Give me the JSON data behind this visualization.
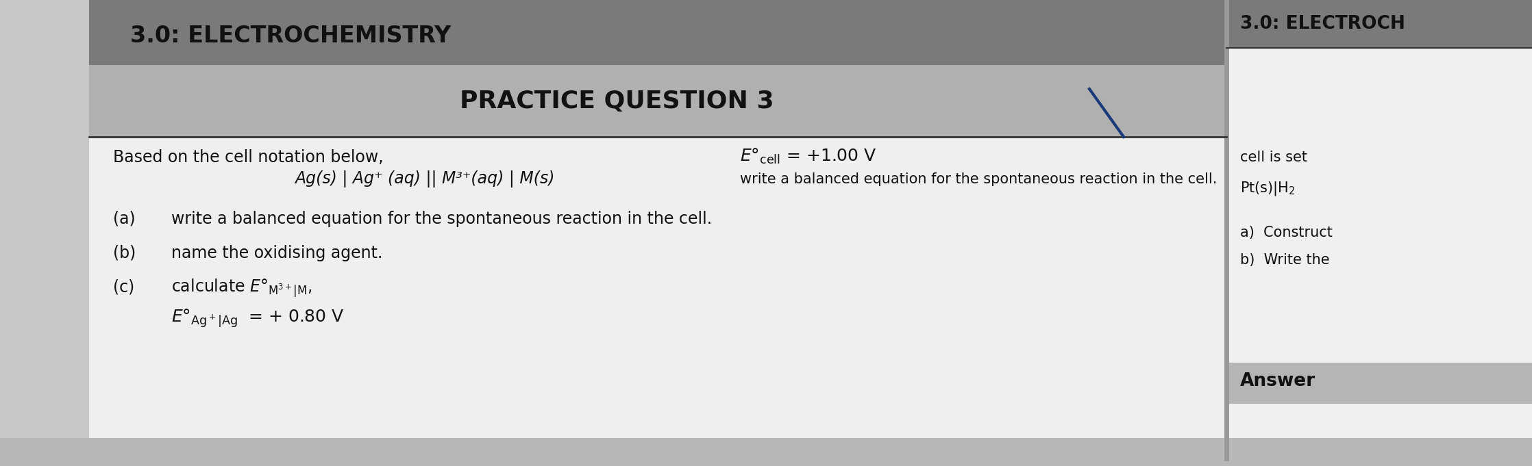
{
  "title_left": "3.0: ELECTROCHEMISTRY",
  "title_right": "3.0: ELECTROCH",
  "practice_title": "PRACTICE QUESTION 3",
  "intro_line1": "Based on the cell notation below,",
  "cell_notation": "Ag(s) | Ag⁺ (aq) || M³⁺(aq) | M(s)",
  "ecell_label": "E°ₑₑₗₗ = +1.00 V",
  "spontaneous": "write a balanced equation for the spontaneous reaction in the cell.",
  "cell_is_set": "cell is set",
  "pt_text": "Pt(s)|H₂",
  "construct_text": "a)  Construct",
  "write_text": "b)  Write the",
  "answer_text": "Answer",
  "qa": "(a)",
  "qb": "(b)",
  "qc": "(c)",
  "write_a": "write a balanced equation for the spontaneous reaction in the cell.",
  "write_b": "name the oxidising agent.",
  "write_c": "calculate E°M³⁺|M ,",
  "eo_ag_val": " = + 0.80 V",
  "bg_outer": "#c8c8c8",
  "bg_left_page": "#efefef",
  "bg_right_page": "#f0f0f0",
  "bg_header_bar": "#7a7a7a",
  "bg_practice_bar": "#b0b0b0",
  "bg_answer_bar": "#b5b5b5",
  "bg_bottom_bar": "#b8b8b8",
  "text_dark": "#111111",
  "line_color": "#333333",
  "slash_color": "#1a3a7a",
  "figw": 22.36,
  "figh": 6.81
}
